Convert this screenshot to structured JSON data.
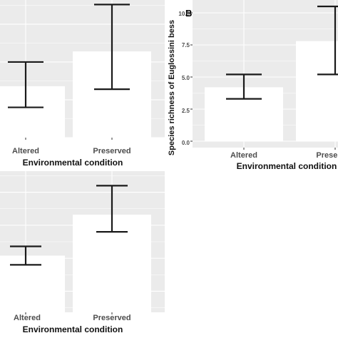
{
  "colors": {
    "panel_background": "#ebebeb",
    "gridline": "#ffffff",
    "bar_fill": "#ffffff",
    "error_bar": "#1a1a1a",
    "tick_label": "#4d4d4d",
    "axis_title": "#111111"
  },
  "chart_data": [
    {
      "type": "bar",
      "panel_label": "",
      "title": "",
      "xlabel": "Environmental condition",
      "ylabel": "",
      "categories": [
        "Altered",
        "Preserved"
      ],
      "values": [
        3.4,
        5.7
      ],
      "error_low": [
        2.0,
        3.2
      ],
      "error_high": [
        5.0,
        8.8
      ],
      "ylim": [
        0,
        9.1
      ],
      "yticks": [],
      "grid": true,
      "legend": "none"
    },
    {
      "type": "bar",
      "panel_label": "B",
      "title": "",
      "xlabel": "Environmental condition",
      "ylabel": "Species richness of Euglossini bess",
      "categories": [
        "Altered",
        "Preserved"
      ],
      "values": [
        4.2,
        7.8
      ],
      "error_low": [
        3.3,
        5.2
      ],
      "error_high": [
        5.2,
        10.5
      ],
      "ylim": [
        -0.5,
        11.0
      ],
      "yticks": [
        "0.0",
        "2.5",
        "5.0",
        "7.5",
        "10.0"
      ],
      "grid": true,
      "legend": "none"
    },
    {
      "type": "bar",
      "panel_label": "",
      "title": "",
      "xlabel": "Environmental condition",
      "ylabel": "",
      "categories": [
        "Altered",
        "Preserved"
      ],
      "values": [
        5.2,
        8.3
      ],
      "error_low": [
        4.5,
        7.0
      ],
      "error_high": [
        5.9,
        10.5
      ],
      "ylim": [
        0.9,
        11.6
      ],
      "yticks": [],
      "grid": true,
      "legend": "none"
    }
  ]
}
